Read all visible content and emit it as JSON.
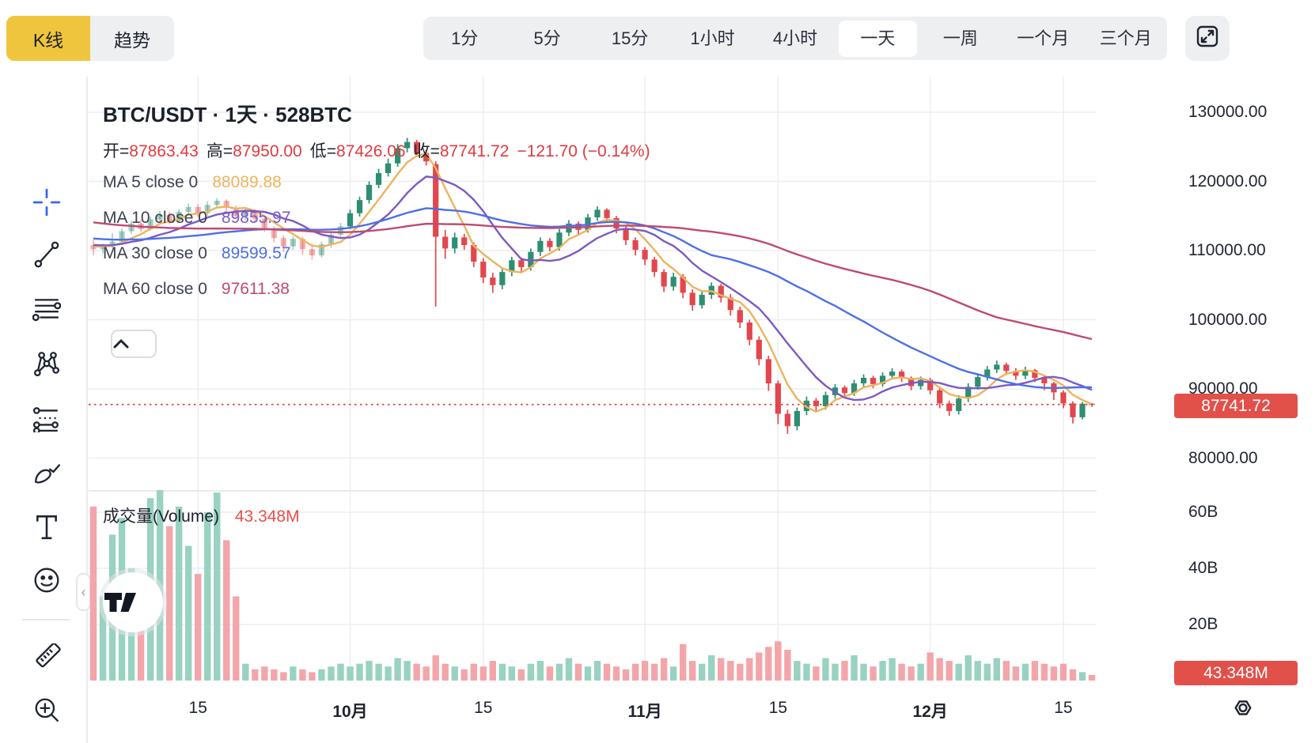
{
  "colors": {
    "accent_yellow": "#F0C53E",
    "up": "#2D8E72",
    "down": "#E2474D",
    "vol_up": "#99D2C1",
    "vol_down": "#F3A6AA",
    "ma5": "#EFB35C",
    "ma10": "#7D59C4",
    "ma30": "#4C6FE8",
    "ma60": "#BF4A71",
    "badge_red": "#E2504A",
    "dotted_red": "#E0443E",
    "grid": "#EDEEF1",
    "text": "#1E222D",
    "value_red": "#E13A40"
  },
  "toolbar": {
    "chart_type_tabs": [
      {
        "label": "K线",
        "active": true
      },
      {
        "label": "趋势",
        "active": false
      }
    ],
    "intervals": [
      {
        "label": "1分",
        "active": false
      },
      {
        "label": "5分",
        "active": false
      },
      {
        "label": "15分",
        "active": false
      },
      {
        "label": "1小时",
        "active": false
      },
      {
        "label": "4小时",
        "active": false
      },
      {
        "label": "一天",
        "active": true
      },
      {
        "label": "一周",
        "active": false
      },
      {
        "label": "一个月",
        "active": false
      },
      {
        "label": "三个月",
        "active": false
      }
    ],
    "fullscreen_icon": "expand-icon"
  },
  "drawing_tools": [
    "crosshair",
    "trend-line",
    "horizontal-lines",
    "xabcd-pattern",
    "parallel-channel",
    "brush",
    "text",
    "emoji",
    "ruler",
    "zoom-in"
  ],
  "legend": {
    "title": "BTC/USDT · 1天 · 528BTC",
    "ohlc_items": [
      {
        "label": "开=",
        "value": "87863.43"
      },
      {
        "label": "高=",
        "value": "87950.00"
      },
      {
        "label": "低=",
        "value": "87426.06"
      },
      {
        "label": "收=",
        "value": "87741.72"
      }
    ],
    "change": "−121.70 (−0.14%)",
    "ma_items": [
      {
        "label": "MA 5 close 0",
        "value": "88089.88",
        "color_key": "ma5"
      },
      {
        "label": "MA 10 close 0",
        "value": "89855.97",
        "color_key": "ma10"
      },
      {
        "label": "MA 30 close 0",
        "value": "89599.57",
        "color_key": "ma30"
      },
      {
        "label": "MA 60 close 0",
        "value": "97611.38",
        "color_key": "ma60"
      }
    ],
    "collapse_glyph": "^"
  },
  "price_axis": {
    "labels": [
      "130000.00",
      "120000.00",
      "110000.00",
      "100000.00",
      "90000.00",
      "80000.00"
    ],
    "badge": "87741.72"
  },
  "volume_pane": {
    "legend_label": "成交量(Volume)",
    "legend_value": "43.348M",
    "axis_labels": [
      "60B",
      "40B",
      "20B"
    ],
    "badge": "43.348M"
  },
  "chart_data": {
    "type": "candlestick+volume+line",
    "symbol": "BTC/USDT",
    "interval": "1天",
    "title": "BTC/USDT · 1天 · 528BTC",
    "legend_position": "top-left",
    "grid": true,
    "price_axis_ticks": [
      130000,
      120000,
      110000,
      100000,
      90000,
      80000
    ],
    "volume_axis_ticks_billion": [
      60,
      40,
      20
    ],
    "last_price": 87741.72,
    "last_price_change": -121.7,
    "last_price_change_pct": -0.14,
    "last_volume_label": "43.348M",
    "faded_before_index": 27,
    "time_ticks": [
      {
        "label": "15",
        "index": 11,
        "bold": false
      },
      {
        "label": "10月",
        "index": 27,
        "bold": true
      },
      {
        "label": "15",
        "index": 41,
        "bold": false
      },
      {
        "label": "11月",
        "index": 58,
        "bold": true
      },
      {
        "label": "15",
        "index": 72,
        "bold": false
      },
      {
        "label": "12月",
        "index": 88,
        "bold": true
      },
      {
        "label": "15",
        "index": 102,
        "bold": false
      }
    ],
    "ma_series": [
      {
        "name": "MA5",
        "period": 5,
        "color_key": "ma5"
      },
      {
        "name": "MA10",
        "period": 10,
        "color_key": "ma10"
      },
      {
        "name": "MA30",
        "period": 30,
        "color_key": "ma30"
      },
      {
        "name": "MA60",
        "period": 60,
        "color_key": "ma60"
      }
    ],
    "ma_seed_history": [
      121000,
      120600,
      120200,
      119800,
      119500,
      119200,
      118800,
      118400,
      118100,
      117800,
      117500,
      117200,
      116900,
      116600,
      116400,
      116100,
      115900,
      115700,
      115500,
      115300,
      115100,
      114900,
      114700,
      114600,
      114400,
      114300,
      114100,
      114000,
      113800,
      113700,
      113500,
      113400,
      113200,
      113100,
      113000,
      112800,
      112700,
      112600,
      112400,
      112300,
      112200,
      112100,
      112000,
      111900,
      111800,
      111700,
      111600,
      111500,
      111400,
      111300,
      111200,
      111200,
      111100,
      111000,
      110900,
      110900,
      110800,
      110700,
      110700,
      110600
    ],
    "candles": [
      [
        110800,
        111600,
        109300,
        110200,
        62
      ],
      [
        110200,
        111000,
        109600,
        110700,
        30
      ],
      [
        110700,
        112500,
        110300,
        111300,
        52
      ],
      [
        111300,
        113200,
        111000,
        112800,
        58
      ],
      [
        112800,
        114300,
        112400,
        113900,
        40
      ],
      [
        113900,
        114400,
        112700,
        113100,
        34
      ],
      [
        113100,
        114900,
        112900,
        114500,
        65
      ],
      [
        114500,
        115700,
        114000,
        115200,
        70
      ],
      [
        115200,
        115600,
        113800,
        114300,
        55
      ],
      [
        114300,
        116000,
        114000,
        115600,
        62
      ],
      [
        115600,
        116800,
        115100,
        116300,
        48
      ],
      [
        116300,
        116700,
        114900,
        115400,
        38
      ],
      [
        115400,
        117100,
        115000,
        116600,
        60
      ],
      [
        116600,
        117600,
        116100,
        117200,
        67
      ],
      [
        117200,
        117400,
        115700,
        116200,
        50
      ],
      [
        116200,
        116500,
        114600,
        115000,
        30
      ],
      [
        115000,
        116200,
        114400,
        115800,
        6
      ],
      [
        115800,
        116000,
        114100,
        114600,
        4
      ],
      [
        114600,
        114800,
        112700,
        113200,
        5
      ],
      [
        113200,
        113500,
        111200,
        111800,
        4
      ],
      [
        111800,
        112200,
        109800,
        110600,
        3
      ],
      [
        110600,
        112100,
        110100,
        111700,
        5
      ],
      [
        111700,
        112000,
        109400,
        110200,
        4
      ],
      [
        110200,
        110800,
        108700,
        109300,
        3
      ],
      [
        109300,
        111300,
        109000,
        110900,
        4
      ],
      [
        110900,
        112800,
        110400,
        112300,
        5
      ],
      [
        112300,
        114000,
        111900,
        113500,
        6
      ],
      [
        113500,
        115900,
        113100,
        115400,
        5
      ],
      [
        115400,
        117800,
        114900,
        117300,
        6
      ],
      [
        117300,
        120000,
        116800,
        119500,
        7
      ],
      [
        119500,
        121800,
        119000,
        121200,
        6
      ],
      [
        121200,
        123300,
        120700,
        122600,
        5
      ],
      [
        122600,
        125400,
        122100,
        124800,
        8
      ],
      [
        124800,
        126300,
        124200,
        125700,
        7
      ],
      [
        125700,
        126000,
        123500,
        124100,
        6
      ],
      [
        124100,
        124600,
        122300,
        122900,
        5
      ],
      [
        122500,
        122900,
        101900,
        112000,
        9
      ],
      [
        112000,
        113000,
        108800,
        110300,
        6
      ],
      [
        110300,
        112600,
        109600,
        111900,
        5
      ],
      [
        111900,
        112400,
        110100,
        110800,
        4
      ],
      [
        110800,
        111200,
        107600,
        108400,
        6
      ],
      [
        108400,
        108900,
        105300,
        106100,
        5
      ],
      [
        106100,
        106800,
        103900,
        105000,
        7
      ],
      [
        105000,
        107400,
        104400,
        106900,
        6
      ],
      [
        106900,
        109100,
        106300,
        108600,
        5
      ],
      [
        108600,
        109000,
        106900,
        107600,
        4
      ],
      [
        107600,
        110300,
        107100,
        109800,
        6
      ],
      [
        109800,
        111900,
        109200,
        111400,
        7
      ],
      [
        111400,
        111800,
        109900,
        110500,
        5
      ],
      [
        110500,
        113100,
        110000,
        112600,
        6
      ],
      [
        112600,
        114400,
        112100,
        113900,
        8
      ],
      [
        113900,
        114200,
        112400,
        113000,
        6
      ],
      [
        113000,
        115300,
        112600,
        114800,
        5
      ],
      [
        114800,
        116400,
        114300,
        115900,
        7
      ],
      [
        115900,
        116100,
        114100,
        114700,
        6
      ],
      [
        114700,
        115000,
        112500,
        113200,
        5
      ],
      [
        113200,
        113600,
        110800,
        111500,
        4
      ],
      [
        111500,
        111900,
        109300,
        110100,
        6
      ],
      [
        110100,
        110500,
        107900,
        108700,
        7
      ],
      [
        108700,
        109100,
        106200,
        106900,
        6
      ],
      [
        106900,
        107300,
        104000,
        104800,
        8
      ],
      [
        104800,
        106800,
        104200,
        106200,
        5
      ],
      [
        106200,
        106600,
        103100,
        103900,
        13
      ],
      [
        103900,
        104400,
        101300,
        102100,
        7
      ],
      [
        102100,
        104100,
        101600,
        103600,
        6
      ],
      [
        103600,
        105400,
        103000,
        104900,
        9
      ],
      [
        104900,
        105200,
        102500,
        103200,
        8
      ],
      [
        103200,
        103700,
        100600,
        101400,
        7
      ],
      [
        101400,
        101900,
        98800,
        99600,
        6
      ],
      [
        99600,
        100000,
        96300,
        97100,
        8
      ],
      [
        97100,
        97600,
        93400,
        94300,
        10
      ],
      [
        94300,
        94800,
        89700,
        90800,
        12
      ],
      [
        90800,
        91200,
        84900,
        86400,
        14
      ],
      [
        86400,
        87000,
        83500,
        84600,
        11
      ],
      [
        84600,
        87300,
        84000,
        86800,
        7
      ],
      [
        86800,
        88900,
        86200,
        88300,
        6
      ],
      [
        88300,
        88700,
        86800,
        87500,
        5
      ],
      [
        87500,
        89600,
        87000,
        89100,
        8
      ],
      [
        89100,
        90700,
        88600,
        90200,
        6
      ],
      [
        90200,
        90500,
        88800,
        89400,
        7
      ],
      [
        89400,
        91300,
        89000,
        90800,
        9
      ],
      [
        90800,
        92100,
        90200,
        91600,
        6
      ],
      [
        91600,
        91900,
        90100,
        90700,
        5
      ],
      [
        90700,
        92400,
        90300,
        91900,
        7
      ],
      [
        91900,
        93000,
        91400,
        92500,
        8
      ],
      [
        92500,
        92800,
        91000,
        91600,
        6
      ],
      [
        91600,
        91800,
        89800,
        90400,
        5
      ],
      [
        90400,
        91800,
        89900,
        91300,
        6
      ],
      [
        91300,
        91600,
        89200,
        89800,
        10
      ],
      [
        89800,
        90100,
        87200,
        87900,
        8
      ],
      [
        87900,
        88300,
        86100,
        86800,
        7
      ],
      [
        86800,
        89100,
        86300,
        88600,
        6
      ],
      [
        88600,
        90800,
        88100,
        90300,
        9
      ],
      [
        90300,
        92200,
        89900,
        91700,
        7
      ],
      [
        91700,
        93300,
        91200,
        92800,
        6
      ],
      [
        92800,
        94100,
        92300,
        93500,
        8
      ],
      [
        93500,
        93800,
        92000,
        92600,
        7
      ],
      [
        92600,
        93000,
        91300,
        91900,
        5
      ],
      [
        91900,
        93200,
        91400,
        92700,
        6
      ],
      [
        92700,
        92900,
        91000,
        91600,
        7
      ],
      [
        91600,
        91900,
        89800,
        90800,
        6
      ],
      [
        90800,
        91000,
        88400,
        89500,
        5
      ],
      [
        89500,
        89800,
        87200,
        87900,
        6
      ],
      [
        87900,
        88200,
        85000,
        85900,
        4
      ],
      [
        85900,
        88100,
        85600,
        87860,
        3
      ],
      [
        87863,
        87950,
        87426,
        87742,
        2
      ]
    ]
  }
}
